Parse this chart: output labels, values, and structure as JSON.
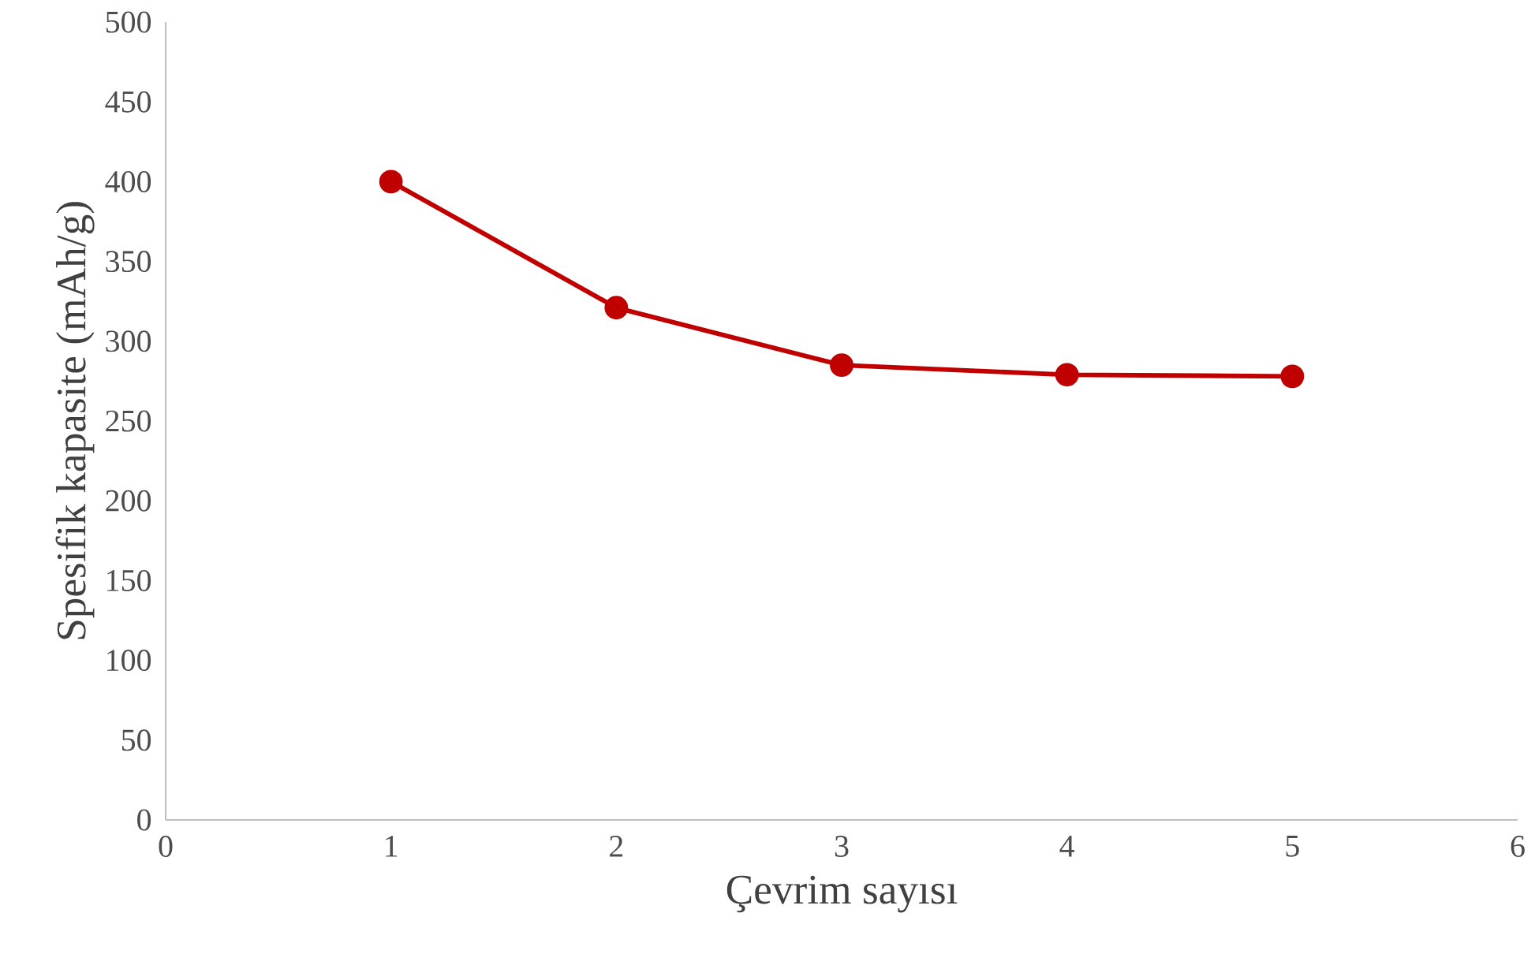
{
  "chart_data": {
    "type": "line",
    "xlabel": "Çevrim sayısı",
    "ylabel": "Spesifik kapasite (mAh/g)",
    "x": [
      1,
      2,
      3,
      4,
      5
    ],
    "series": [
      {
        "color": "#c00000",
        "values": [
          400,
          321,
          285,
          279,
          278
        ]
      }
    ],
    "marker": "circle",
    "line_style": "solid",
    "grid": false,
    "xlim": [
      0,
      6
    ],
    "xticks": [
      0,
      1,
      2,
      3,
      4,
      5,
      6
    ],
    "ylim": [
      0,
      500
    ],
    "yticks": [
      0,
      50,
      100,
      150,
      200,
      250,
      300,
      350,
      400,
      450,
      500
    ]
  }
}
